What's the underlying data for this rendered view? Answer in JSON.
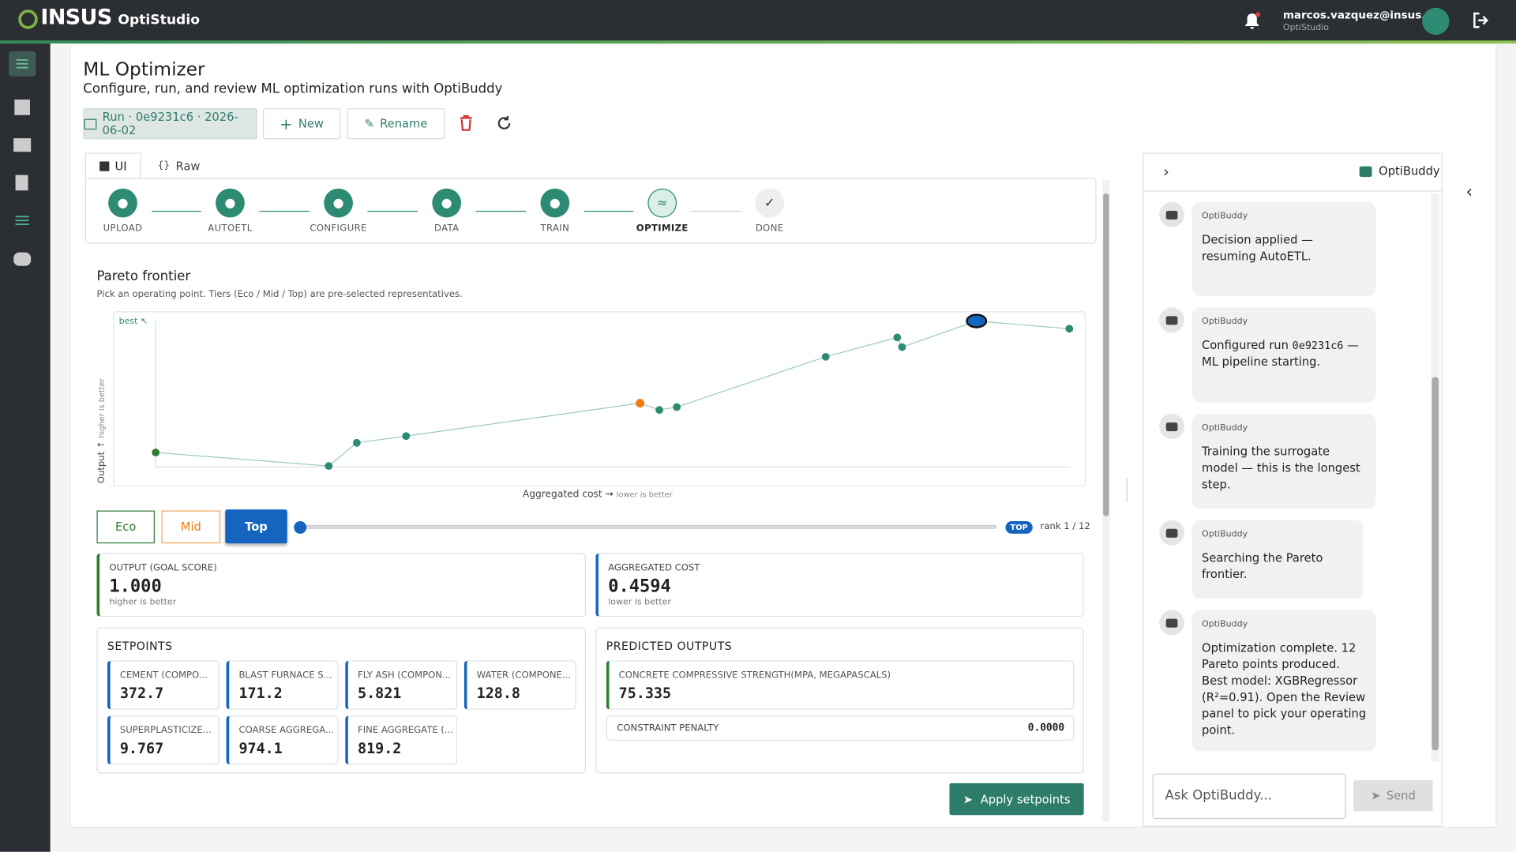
{
  "header": {
    "brand": "INSUS",
    "app": "OptiStudio",
    "user_email": "marcos.vazquez@insus.ch",
    "user_app": "OptiStudio"
  },
  "page": {
    "title": "ML Optimizer",
    "subtitle": "Configure, run, and review ML optimization runs with OptiBuddy"
  },
  "toolbar": {
    "run": "Run · 0e9231c6 · 2026-06-02",
    "new": "New",
    "rename": "Rename"
  },
  "tabs": [
    "UI",
    "Raw"
  ],
  "steps": [
    "UPLOAD",
    "AUTOETL",
    "CONFIGURE",
    "DATA",
    "TRAIN",
    "OPTIMIZE",
    "DONE"
  ],
  "pareto": {
    "title": "Pareto frontier",
    "hint": "Pick an operating point. Tiers (Eco / Mid / Top) are pre-selected representatives.",
    "best_label": "best ↖",
    "y_label": "Output ↑",
    "y_hint": "higher is better",
    "x_label": "Aggregated cost →",
    "x_hint": "lower is better"
  },
  "tiers": [
    "Eco",
    "Mid",
    "Top"
  ],
  "rank_badge": "TOP",
  "rank": "rank 1 / 12",
  "metrics": [
    {
      "label": "OUTPUT (GOAL SCORE)",
      "value": "1.000",
      "hint": "higher is better"
    },
    {
      "label": "AGGREGATED COST",
      "value": "0.4594",
      "hint": "lower is better"
    }
  ],
  "setpoints": {
    "title": "SETPOINTS",
    "items": [
      {
        "label": "CEMENT (COMPO...",
        "value": "372.7"
      },
      {
        "label": "BLAST FURNACE S...",
        "value": "171.2"
      },
      {
        "label": "FLY ASH (COMPON...",
        "value": "5.821"
      },
      {
        "label": "WATER (COMPONE...",
        "value": "128.8"
      },
      {
        "label": "SUPERPLASTICIZE...",
        "value": "9.767"
      },
      {
        "label": "COARSE AGGREGA...",
        "value": "974.1"
      },
      {
        "label": "FINE AGGREGATE (...",
        "value": "819.2"
      }
    ]
  },
  "predicted": {
    "title": "PREDICTED OUTPUTS",
    "items": [
      {
        "label": "CONCRETE COMPRESSIVE STRENGTH(MPA, MEGAPASCALS)",
        "value": "75.335"
      },
      {
        "label": "CONSTRAINT PENALTY",
        "value": "0.0000"
      }
    ]
  },
  "apply": "Apply setpoints",
  "chat": {
    "title": "OptiBuddy",
    "messages": [
      {
        "sender": "OptiBuddy",
        "text": [
          "Decision applied — resuming AutoETL."
        ]
      },
      {
        "sender": "OptiBuddy",
        "text": [
          "Configured run ",
          "0e9231c6",
          " — ML pipeline starting."
        ]
      },
      {
        "sender": "OptiBuddy",
        "text": [
          "Training the surrogate model — this is the longest step."
        ]
      },
      {
        "sender": "OptiBuddy",
        "text": [
          "Searching the Pareto frontier."
        ]
      },
      {
        "sender": "OptiBuddy",
        "text": [
          "Optimization complete. 12 Pareto points produced. Best model: XGBRegressor (R²=0.91). Open the Review panel to pick your operating point."
        ]
      }
    ],
    "input": "Ask OptiBuddy...",
    "send": "Send"
  }
}
